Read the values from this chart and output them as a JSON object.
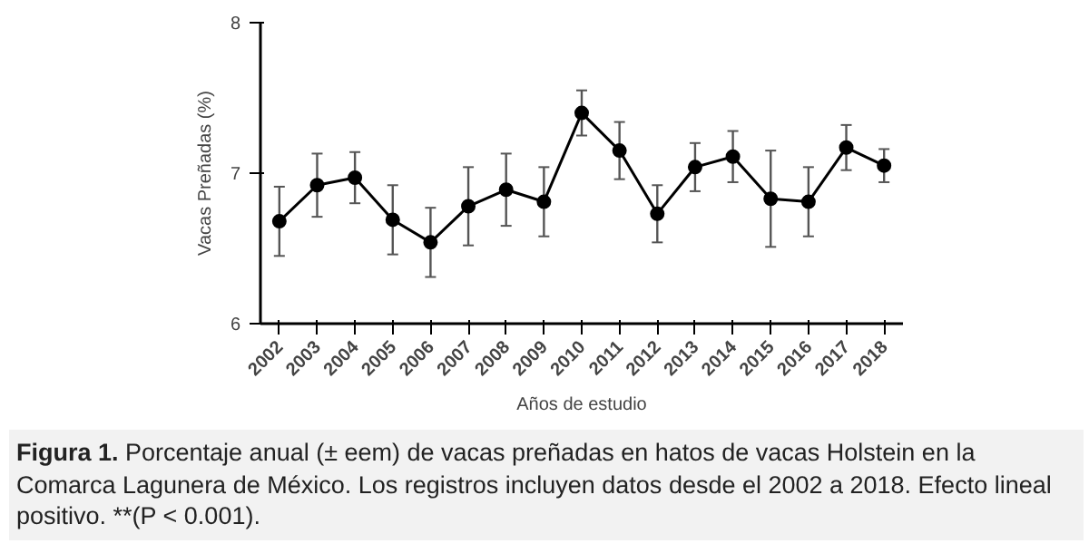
{
  "chart_data": {
    "type": "line",
    "xlabel": "Años de estudio",
    "ylabel": "Vacas Preñadas (%)",
    "categories": [
      "2002",
      "2003",
      "2004",
      "2005",
      "2006",
      "2007",
      "2008",
      "2009",
      "2010",
      "2011",
      "2012",
      "2013",
      "2014",
      "2015",
      "2016",
      "2017",
      "2018"
    ],
    "series": [
      {
        "color": "#000000",
        "values": [
          6.68,
          6.92,
          6.97,
          6.69,
          6.54,
          6.78,
          6.89,
          6.81,
          7.4,
          7.15,
          6.73,
          7.04,
          7.11,
          6.83,
          6.81,
          7.17,
          7.05
        ],
        "errors": [
          0.23,
          0.21,
          0.17,
          0.23,
          0.23,
          0.26,
          0.24,
          0.23,
          0.15,
          0.19,
          0.19,
          0.16,
          0.17,
          0.32,
          0.23,
          0.15,
          0.11
        ]
      }
    ],
    "ylim": [
      6,
      8
    ],
    "yticks": [
      6,
      7,
      8
    ],
    "grid": false,
    "marker": "circle",
    "line_style": "solid",
    "annotations": [
      "Figura 1. Porcentaje anual (± eem) de vacas preñadas en hatos de vacas Holstein en la Comarca Lagunera de México. Los registros incluyen datos desde el 2002 a 2018. Efecto lineal positivo. **(P < 0.001)."
    ]
  }
}
